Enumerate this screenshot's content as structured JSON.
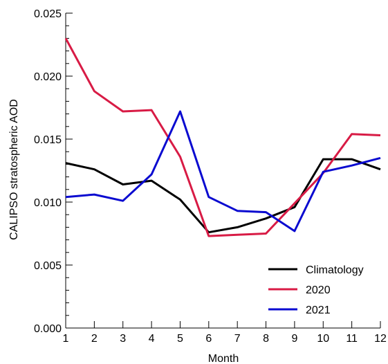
{
  "chart_data": {
    "type": "line",
    "xlabel": "Month",
    "ylabel": "CALIPSO stratospheric AOD",
    "xlim": [
      1,
      12
    ],
    "ylim": [
      0.0,
      0.025
    ],
    "x_ticks": [
      "1",
      "2",
      "3",
      "4",
      "5",
      "6",
      "7",
      "8",
      "9",
      "10",
      "11",
      "12"
    ],
    "y_ticks": [
      "0.000",
      "0.005",
      "0.010",
      "0.015",
      "0.020",
      "0.025"
    ],
    "grid": false,
    "legend_position": "bottom-right",
    "x": [
      1,
      2,
      3,
      4,
      5,
      6,
      7,
      8,
      9,
      10,
      11,
      12
    ],
    "series": [
      {
        "name": "Climatology",
        "color": "#000000",
        "values": [
          0.0131,
          0.0126,
          0.0114,
          0.0117,
          0.0102,
          0.0076,
          0.008,
          0.0087,
          0.0096,
          0.0134,
          0.0134,
          0.0126
        ]
      },
      {
        "name": "2020",
        "color": "#d81b45",
        "values": [
          0.023,
          0.0188,
          0.0172,
          0.0173,
          0.0136,
          0.0073,
          0.0074,
          0.0075,
          0.0099,
          0.0123,
          0.0154,
          0.0153
        ]
      },
      {
        "name": "2021",
        "color": "#0a0ad0",
        "values": [
          0.0104,
          0.0106,
          0.0101,
          0.0122,
          0.0172,
          0.0104,
          0.0093,
          0.0092,
          0.0077,
          0.0124,
          0.0129,
          0.0135
        ]
      }
    ]
  }
}
